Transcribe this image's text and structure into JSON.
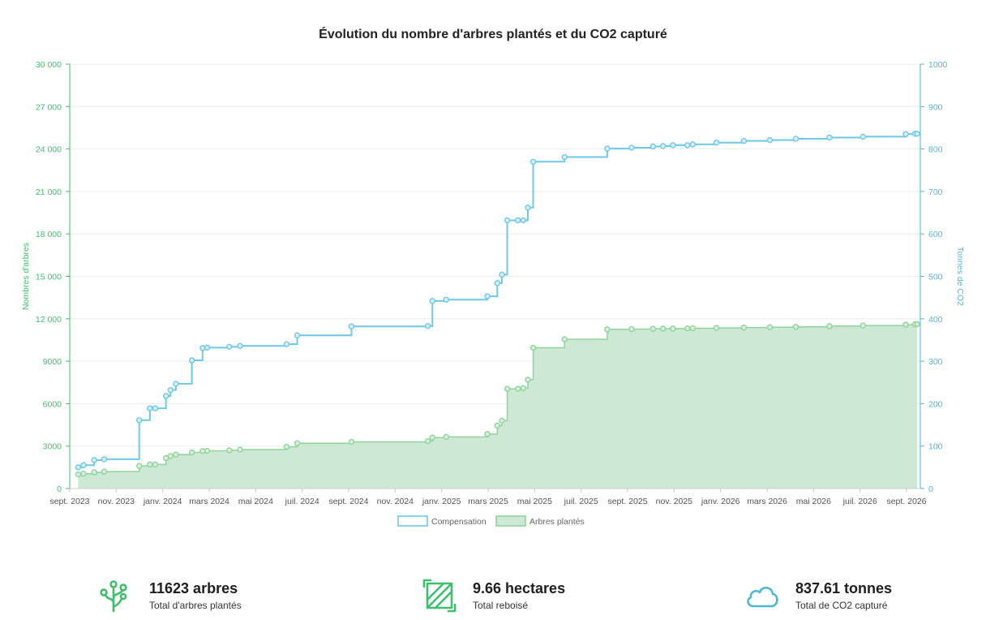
{
  "chart_data": {
    "type": "area",
    "title": "Évolution du nombre d'arbres plantés et du CO2 capturé",
    "x_tick_labels": [
      "sept. 2023",
      "nov. 2023",
      "janv. 2024",
      "mars 2024",
      "mai 2024",
      "juil. 2024",
      "sept. 2024",
      "nov. 2024",
      "janv. 2025",
      "mars 2025",
      "mai 2025",
      "juil. 2025",
      "sept. 2025",
      "nov. 2025",
      "janv. 2026",
      "mars 2026",
      "mai 2026",
      "juil. 2026",
      "sept. 2026"
    ],
    "y_left": {
      "label": "Nombres d'arbres",
      "range": [
        0,
        30000
      ],
      "ticks": [
        "0",
        "3000",
        "6000",
        "9000",
        "12 000",
        "15 000",
        "18 000",
        "21 000",
        "24 000",
        "27 000",
        "30 000"
      ]
    },
    "y_right": {
      "label": "Tonnes de CO2",
      "range": [
        0,
        1000
      ],
      "ticks": [
        "0",
        "100",
        "200",
        "300",
        "400",
        "500",
        "600",
        "700",
        "800",
        "900",
        "1000"
      ]
    },
    "grid": true,
    "legend_position": "bottom",
    "series": [
      {
        "name": "Compensation",
        "axis": "right",
        "style": "step-line",
        "color": "#6ec9e8",
        "points": [
          [
            "2023-09-12",
            50
          ],
          [
            "2023-09-19",
            55
          ],
          [
            "2023-10-03",
            67
          ],
          [
            "2023-10-16",
            69
          ],
          [
            "2023-12-01",
            161
          ],
          [
            "2023-12-15",
            189
          ],
          [
            "2023-12-22",
            189
          ],
          [
            "2024-01-05",
            218
          ],
          [
            "2024-01-11",
            232
          ],
          [
            "2024-01-18",
            247
          ],
          [
            "2024-02-08",
            302
          ],
          [
            "2024-02-22",
            331
          ],
          [
            "2024-02-28",
            332
          ],
          [
            "2024-03-28",
            334
          ],
          [
            "2024-04-11",
            336
          ],
          [
            "2024-06-11",
            340
          ],
          [
            "2024-06-25",
            361
          ],
          [
            "2024-09-04",
            382
          ],
          [
            "2024-12-13",
            383
          ],
          [
            "2024-12-19",
            442
          ],
          [
            "2025-01-06",
            445
          ],
          [
            "2025-03-01",
            453
          ],
          [
            "2025-03-14",
            484
          ],
          [
            "2025-03-20",
            504
          ],
          [
            "2025-03-27",
            632
          ],
          [
            "2025-04-10",
            632
          ],
          [
            "2025-04-17",
            632
          ],
          [
            "2025-04-23",
            662
          ],
          [
            "2025-04-30",
            770
          ],
          [
            "2025-06-10",
            781
          ],
          [
            "2025-08-05",
            801
          ],
          [
            "2025-09-06",
            803
          ],
          [
            "2025-10-04",
            806
          ],
          [
            "2025-10-17",
            807
          ],
          [
            "2025-10-30",
            809
          ],
          [
            "2025-11-18",
            809
          ],
          [
            "2025-11-25",
            811
          ],
          [
            "2025-12-26",
            815
          ],
          [
            "2026-01-31",
            819
          ],
          [
            "2026-03-06",
            821
          ],
          [
            "2026-04-09",
            824
          ],
          [
            "2026-05-23",
            827
          ],
          [
            "2026-07-06",
            829
          ],
          [
            "2026-08-31",
            835
          ],
          [
            "2026-09-12",
            836
          ],
          [
            "2026-09-15",
            836
          ]
        ]
      },
      {
        "name": "Arbres plantés",
        "axis": "left",
        "style": "step-area",
        "color": "#8fd49a",
        "fill": "#cde8d4",
        "points": [
          [
            "2023-09-12",
            1000
          ],
          [
            "2023-09-19",
            1050
          ],
          [
            "2023-10-03",
            1150
          ],
          [
            "2023-10-16",
            1200
          ],
          [
            "2023-12-01",
            1600
          ],
          [
            "2023-12-15",
            1700
          ],
          [
            "2023-12-22",
            1700
          ],
          [
            "2024-01-05",
            2150
          ],
          [
            "2024-01-11",
            2300
          ],
          [
            "2024-01-18",
            2400
          ],
          [
            "2024-02-08",
            2550
          ],
          [
            "2024-02-22",
            2650
          ],
          [
            "2024-02-28",
            2670
          ],
          [
            "2024-03-28",
            2700
          ],
          [
            "2024-04-11",
            2750
          ],
          [
            "2024-06-11",
            2950
          ],
          [
            "2024-06-25",
            3200
          ],
          [
            "2024-09-04",
            3300
          ],
          [
            "2024-12-13",
            3350
          ],
          [
            "2024-12-19",
            3600
          ],
          [
            "2025-01-06",
            3650
          ],
          [
            "2025-03-01",
            3850
          ],
          [
            "2025-03-14",
            4450
          ],
          [
            "2025-03-20",
            4800
          ],
          [
            "2025-03-27",
            7050
          ],
          [
            "2025-04-10",
            7050
          ],
          [
            "2025-04-17",
            7100
          ],
          [
            "2025-04-23",
            7700
          ],
          [
            "2025-04-30",
            9950
          ],
          [
            "2025-06-10",
            10550
          ],
          [
            "2025-08-05",
            11250
          ],
          [
            "2025-09-06",
            11270
          ],
          [
            "2025-10-04",
            11290
          ],
          [
            "2025-10-17",
            11300
          ],
          [
            "2025-10-30",
            11310
          ],
          [
            "2025-11-18",
            11320
          ],
          [
            "2025-11-25",
            11330
          ],
          [
            "2025-12-26",
            11350
          ],
          [
            "2026-01-31",
            11380
          ],
          [
            "2026-03-06",
            11400
          ],
          [
            "2026-04-09",
            11430
          ],
          [
            "2026-05-23",
            11480
          ],
          [
            "2026-07-06",
            11520
          ],
          [
            "2026-08-31",
            11580
          ],
          [
            "2026-09-12",
            11610
          ],
          [
            "2026-09-15",
            11623
          ]
        ]
      }
    ]
  },
  "stats": [
    {
      "value": "11623 arbres",
      "label": "Total d'arbres plantés",
      "icon": "tree-icon",
      "color": "#3dbf6b"
    },
    {
      "value": "9.66 hectares",
      "label": "Total reboisé",
      "icon": "area-icon",
      "color": "#3dbf6b"
    },
    {
      "value": "837.61 tonnes",
      "label": "Total de CO2 capturé",
      "icon": "cloud-icon",
      "color": "#4cb9d3"
    }
  ]
}
